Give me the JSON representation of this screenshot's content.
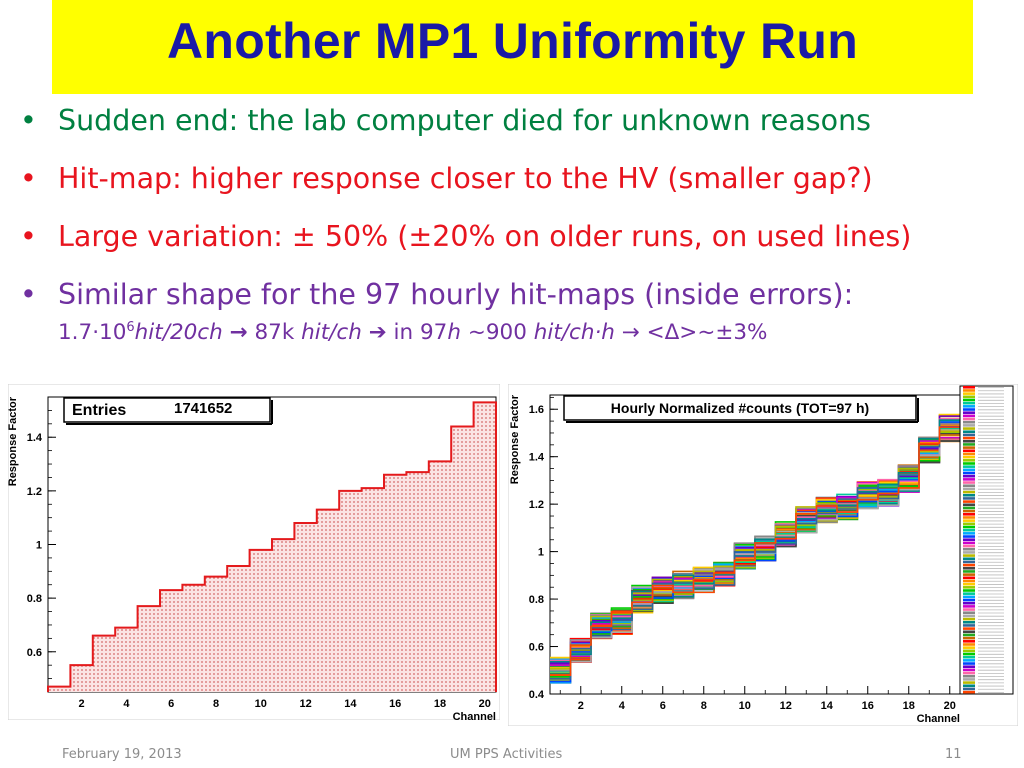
{
  "slide": {
    "title": "Another MP1 Uniformity Run",
    "bullet_glyph": "•",
    "bullets": [
      {
        "text": "Sudden end: the lab computer died for unknown reasons",
        "color": "#008040"
      },
      {
        "text": "Hit-map: higher response closer to the HV (smaller gap?)",
        "color": "#e8141e"
      },
      {
        "text": "Large variation: ± 50% (±20% on older runs, on used lines)",
        "color": "#e8141e"
      },
      {
        "text": "Similar shape for the 97 hourly hit-maps (inside errors):",
        "color": "#7030a0"
      }
    ],
    "formula": {
      "p1": "1.7·10",
      "sup": "6",
      "p2": "hit/20ch",
      "arrow1": "→",
      "p3": " 87k ",
      "p4": "hit/ch",
      "arrow2": "➔",
      "p5": " in 97",
      "p6": "h",
      "p7": " ~900 ",
      "p8": "hit/ch·h",
      "p9": " → <Δ>~±3%"
    },
    "footer": {
      "date": "February 19, 2013",
      "center": "UM PPS Activities",
      "page": "11"
    }
  },
  "chart_data": [
    {
      "type": "histogram",
      "stats_label": "Entries",
      "stats_value": "1741652",
      "xlabel": "Channel",
      "ylabel": "Response Factor",
      "xlim": [
        0.5,
        20.5
      ],
      "ylim": [
        0.45,
        1.55
      ],
      "xticks": [
        2,
        4,
        6,
        8,
        10,
        12,
        14,
        16,
        18,
        20
      ],
      "yticks": [
        0.6,
        0.8,
        1,
        1.2,
        1.4
      ],
      "ytick_labels": [
        "0.6",
        "0.8",
        "1",
        "1.2",
        "1.4"
      ],
      "channels": [
        1,
        2,
        3,
        4,
        5,
        6,
        7,
        8,
        9,
        10,
        11,
        12,
        13,
        14,
        15,
        16,
        17,
        18,
        19,
        20
      ],
      "values": [
        0.47,
        0.55,
        0.66,
        0.69,
        0.77,
        0.83,
        0.85,
        0.88,
        0.92,
        0.98,
        1.02,
        1.08,
        1.13,
        1.2,
        1.21,
        1.26,
        1.27,
        1.31,
        1.44,
        1.53
      ],
      "line_color": "#e41a1c",
      "fill_color": "#f5c6c6"
    },
    {
      "type": "histogram-overlay",
      "title": "Hourly Normalized #counts (TOT=97 h)",
      "xlabel": "Channel",
      "ylabel": "Response Factor",
      "xlim": [
        0.5,
        20.5
      ],
      "ylim": [
        0.4,
        1.66
      ],
      "xticks": [
        2,
        4,
        6,
        8,
        10,
        12,
        14,
        16,
        18,
        20
      ],
      "yticks": [
        0.4,
        0.6,
        0.8,
        1,
        1.2,
        1.4,
        1.6
      ],
      "ytick_labels": [
        "0.4",
        "0.6",
        "0.8",
        "1",
        "1.2",
        "1.4",
        "1.6"
      ],
      "n_series": 97,
      "channels": [
        1,
        2,
        3,
        4,
        5,
        6,
        7,
        8,
        9,
        10,
        11,
        12,
        13,
        14,
        15,
        16,
        17,
        18,
        19,
        20
      ],
      "mean_values": [
        0.5,
        0.58,
        0.69,
        0.71,
        0.8,
        0.84,
        0.86,
        0.88,
        0.91,
        0.98,
        1.01,
        1.08,
        1.13,
        1.18,
        1.19,
        1.24,
        1.25,
        1.31,
        1.43,
        1.52
      ],
      "spread": 0.04,
      "palette": [
        "#ff0000",
        "#ff8800",
        "#ffcc00",
        "#99cc00",
        "#00cc00",
        "#00cc99",
        "#00aaff",
        "#0044ff",
        "#6600cc",
        "#cc00cc",
        "#ff66aa",
        "#888888",
        "#aaaaaa",
        "#bbbb00",
        "#008888",
        "#336699",
        "#ff4400",
        "#444444",
        "#22aa22",
        "#cc6600"
      ]
    }
  ]
}
